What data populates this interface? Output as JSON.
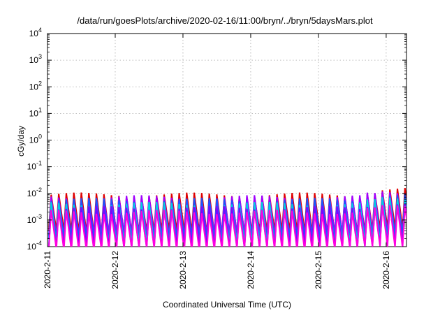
{
  "chart_data": {
    "type": "line",
    "title": "/data/run/goesPlots/archive/2020-02-16/11:00/bryn/../bryn/5daysMars.plot",
    "xlabel": "Coordinated Universal Time (UTC)",
    "ylabel": "cGy/day",
    "x_tick_labels": [
      "2020-2-11",
      "2020-2-12",
      "2020-2-13",
      "2020-2-14",
      "2020-2-15",
      "2020-2-16"
    ],
    "xlim_days": [
      0,
      5.3
    ],
    "y_scale": "log",
    "ylim": [
      0.0001,
      10000
    ],
    "y_ticks": [
      {
        "base": "10",
        "exp": "4"
      },
      {
        "base": "10",
        "exp": "3"
      },
      {
        "base": "10",
        "exp": "2"
      },
      {
        "base": "10",
        "exp": "1"
      },
      {
        "base": "10",
        "exp": "0"
      },
      {
        "base": "10",
        "exp": "-1"
      },
      {
        "base": "10",
        "exp": "-2"
      },
      {
        "base": "10",
        "exp": "-3"
      },
      {
        "base": "10",
        "exp": "-4"
      }
    ],
    "grid": true,
    "series_pattern": {
      "kind": "sawtooth",
      "cycles_per_day": 9,
      "note": "Periodic sawtooth bursts; peaks rise slightly toward the end of the window."
    },
    "series": [
      {
        "color": "#e00000",
        "peak_log": -2.05,
        "trough_log": -3.45
      },
      {
        "color": "#a000ff",
        "peak_log": -2.15,
        "trough_log": -3.55
      },
      {
        "color": "#1a55ff",
        "peak_log": -2.25,
        "trough_log": -3.75
      },
      {
        "color": "#00d0e0",
        "peak_log": -2.4,
        "trough_log": -3.95
      },
      {
        "color": "#8000ff",
        "peak_log": -2.55,
        "trough_log": -4.0
      },
      {
        "color": "#ff00e0",
        "peak_log": -2.7,
        "trough_log": -4.1
      }
    ]
  }
}
